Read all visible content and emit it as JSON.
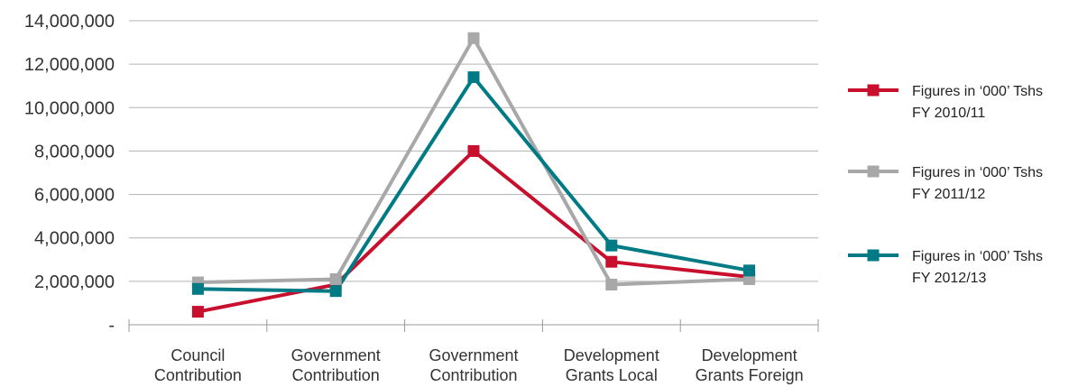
{
  "chart_data": {
    "type": "line",
    "categories": [
      [
        "Council",
        "Contribution"
      ],
      [
        "Government",
        "Contribution"
      ],
      [
        "Government",
        "Contribution"
      ],
      [
        "Development",
        "Grants Local"
      ],
      [
        "Development",
        "Grants Foreign"
      ]
    ],
    "y_ticks": [
      "-",
      "2,000,000",
      "4,000,000",
      "6,000,000",
      "8,000,000",
      "10,000,000",
      "12,000,000",
      "14,000,000"
    ],
    "ylim": [
      0,
      14000000
    ],
    "grid": true,
    "legend_position": "right",
    "series": [
      {
        "name": [
          "Figures in ‘000’ Tshs",
          "FY 2010/11"
        ],
        "color": "#c8102e",
        "values": [
          600000,
          1850000,
          8000000,
          2900000,
          2200000
        ]
      },
      {
        "name": [
          "Figures in ‘000’ Tshs",
          "FY 2011/12"
        ],
        "color": "#a8a8a8",
        "values": [
          1950000,
          2100000,
          13200000,
          1850000,
          2100000
        ]
      },
      {
        "name": [
          "Figures in ‘000’ Tshs",
          "FY 2012/13"
        ],
        "color": "#007b85",
        "values": [
          1650000,
          1550000,
          11400000,
          3650000,
          2500000
        ]
      }
    ]
  }
}
